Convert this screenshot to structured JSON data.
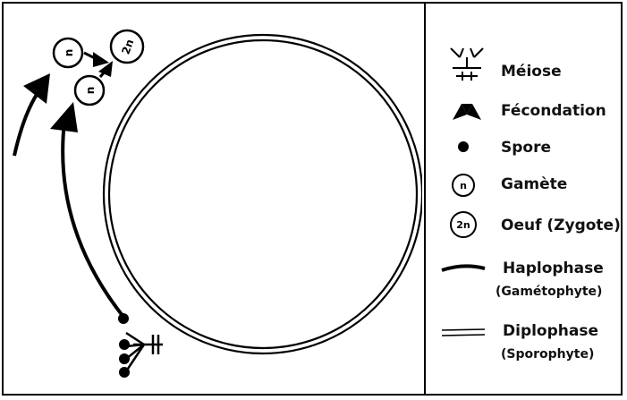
{
  "diagram": {
    "gamete_symbol": "n",
    "zygote_symbol": "2n"
  },
  "legend": {
    "meiose": "Méiose",
    "fecondation": "Fécondation",
    "spore": "Spore",
    "gamete": "Gamète",
    "oeuf": "Oeuf (Zygote)",
    "haplophase": "Haplophase",
    "haplophase_sub": "(Gamétophyte)",
    "diplophase": "Diplophase",
    "diplophase_sub": "(Sporophyte)"
  },
  "colors": {
    "ink": "#000000",
    "background": "#ffffff"
  }
}
